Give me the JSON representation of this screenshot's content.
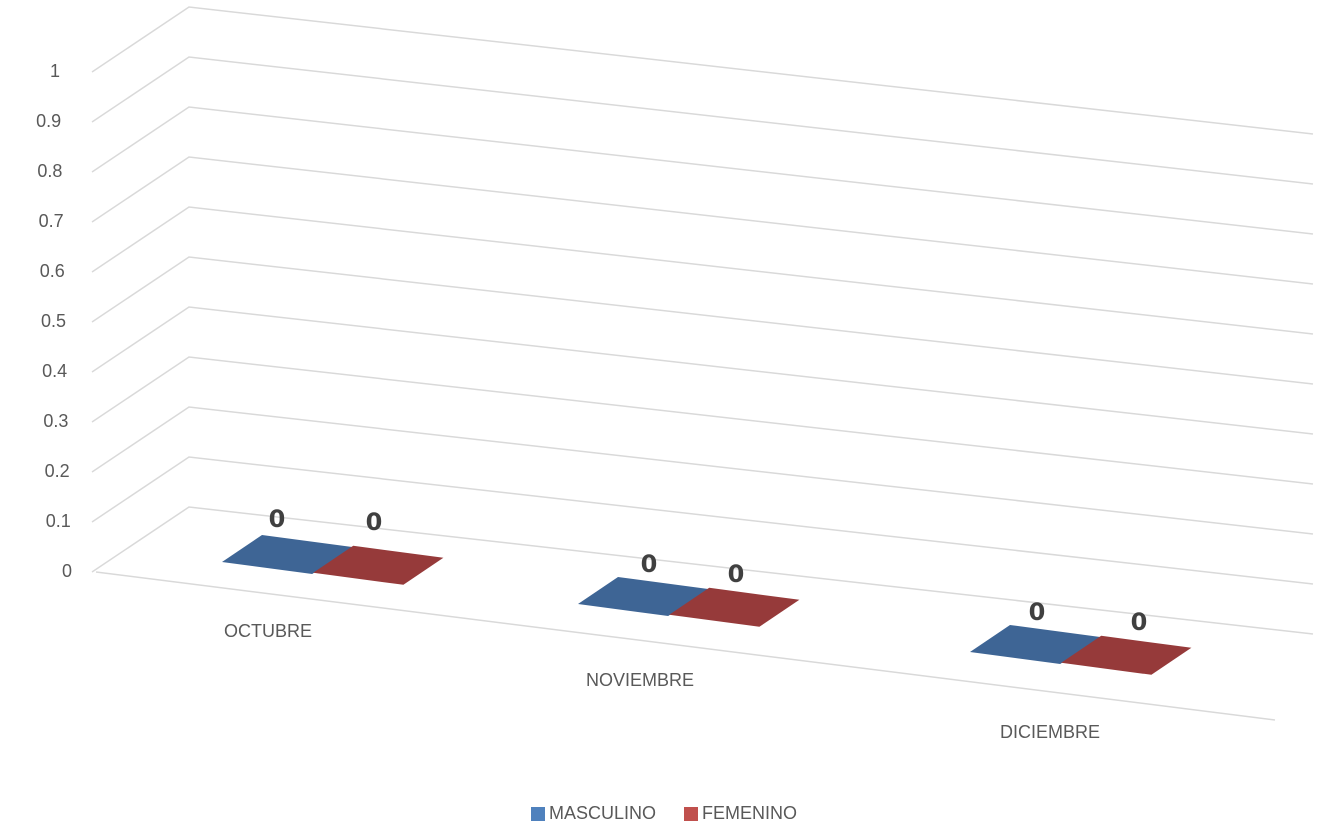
{
  "chart_data": {
    "type": "bar",
    "style": "3d-column",
    "categories": [
      "OCTUBRE",
      "NOVIEMBRE",
      "DICIEMBRE"
    ],
    "series": [
      {
        "name": "MASCULINO",
        "values": [
          0,
          0,
          0
        ],
        "color": "#3E6595"
      },
      {
        "name": "FEMENINO",
        "values": [
          0,
          0,
          0
        ],
        "color": "#963A3A"
      }
    ],
    "data_labels": [
      "0",
      "0",
      "0",
      "0",
      "0",
      "0"
    ],
    "ylim": [
      0,
      1
    ],
    "yticks": [
      "0",
      "0.1",
      "0.2",
      "0.3",
      "0.4",
      "0.5",
      "0.6",
      "0.7",
      "0.8",
      "0.9",
      "1"
    ],
    "grid": true,
    "legend_position": "bottom",
    "title": "",
    "xlabel": "",
    "ylabel": ""
  }
}
